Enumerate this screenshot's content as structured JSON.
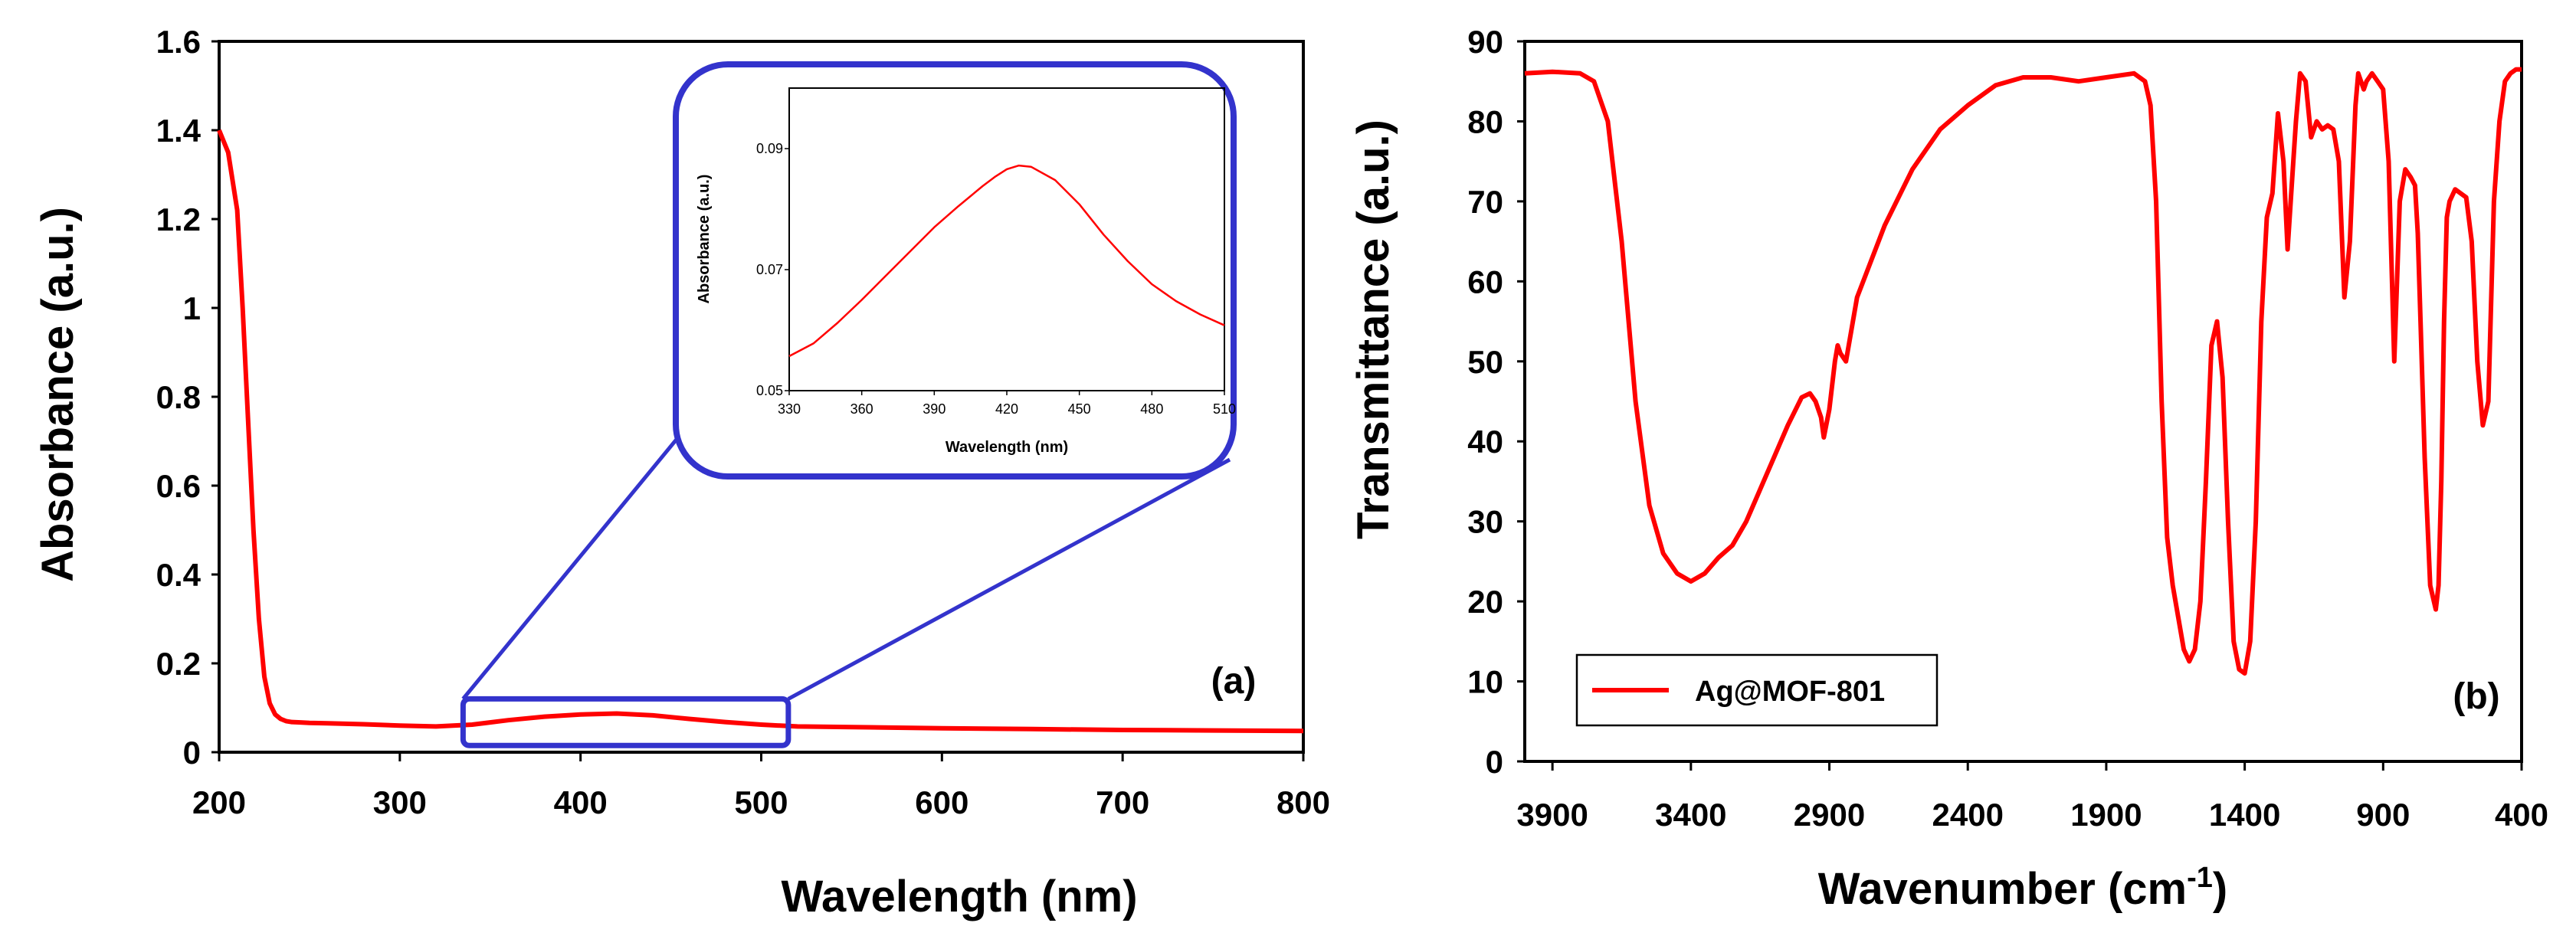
{
  "colors": {
    "series": "#ff0000",
    "callout": "#3333cc",
    "axis": "#000000"
  },
  "chart_data": [
    {
      "id": "a",
      "type": "line",
      "panel_label": "(a)",
      "xlabel": "Wavelength (nm)",
      "ylabel": "Absorbance (a.u.)",
      "xlim": [
        200,
        800
      ],
      "ylim": [
        0,
        1.6
      ],
      "xticks": [
        "200",
        "300",
        "400",
        "500",
        "600",
        "700",
        "800"
      ],
      "yticks": [
        "0",
        "0.2",
        "0.4",
        "0.6",
        "0.8",
        "1",
        "1.2",
        "1.4",
        "1.6"
      ],
      "series": [
        {
          "name": "Ag@MOF-801",
          "x": [
            200,
            205,
            210,
            213,
            216,
            219,
            222,
            225,
            228,
            231,
            234,
            237,
            240,
            245,
            250,
            260,
            280,
            300,
            320,
            340,
            360,
            380,
            400,
            420,
            440,
            460,
            480,
            500,
            520,
            560,
            600,
            650,
            700,
            750,
            800
          ],
          "y": [
            1.4,
            1.35,
            1.22,
            1.0,
            0.75,
            0.5,
            0.3,
            0.17,
            0.11,
            0.085,
            0.075,
            0.07,
            0.068,
            0.067,
            0.066,
            0.065,
            0.063,
            0.06,
            0.058,
            0.062,
            0.072,
            0.08,
            0.085,
            0.087,
            0.083,
            0.075,
            0.068,
            0.062,
            0.058,
            0.056,
            0.054,
            0.052,
            0.05,
            0.049,
            0.048
          ]
        }
      ],
      "zoom_region": {
        "x": [
          335,
          515
        ],
        "y": [
          0.015,
          0.12
        ]
      },
      "inset": {
        "type": "line",
        "xlabel": "Wavelength (nm)",
        "ylabel": "Absorbance (a.u.)",
        "xlim": [
          330,
          510
        ],
        "ylim": [
          0.05,
          0.1
        ],
        "xticks": [
          "330",
          "360",
          "390",
          "420",
          "450",
          "480",
          "510"
        ],
        "yticks": [
          "0.05",
          "0.07",
          "0.09"
        ],
        "x": [
          330,
          340,
          350,
          360,
          370,
          380,
          390,
          400,
          410,
          415,
          420,
          425,
          430,
          440,
          450,
          460,
          470,
          480,
          490,
          500,
          510
        ],
        "y": [
          0.0557,
          0.0578,
          0.0612,
          0.065,
          0.069,
          0.073,
          0.077,
          0.0805,
          0.0838,
          0.0853,
          0.0866,
          0.0872,
          0.087,
          0.0848,
          0.0808,
          0.0758,
          0.0714,
          0.0676,
          0.0648,
          0.0626,
          0.0608
        ]
      }
    },
    {
      "id": "b",
      "type": "line",
      "panel_label": "(b)",
      "xlabel": "Wavenumber (cm",
      "xlabel_sup": "-1",
      "xlabel_end": ")",
      "ylabel": "Transmittance (a.u.)",
      "xlim": [
        4000,
        400
      ],
      "ylim": [
        0,
        90
      ],
      "xticks": [
        "3900",
        "3400",
        "2900",
        "2400",
        "1900",
        "1400",
        "900",
        "400"
      ],
      "yticks": [
        "0",
        "10",
        "20",
        "30",
        "40",
        "50",
        "60",
        "70",
        "80",
        "90"
      ],
      "legend": {
        "label": "Ag@MOF-801",
        "position": "bottom-left"
      },
      "series": [
        {
          "name": "Ag@MOF-801",
          "x": [
            4000,
            3900,
            3800,
            3750,
            3700,
            3650,
            3600,
            3550,
            3500,
            3450,
            3400,
            3350,
            3300,
            3250,
            3200,
            3150,
            3100,
            3050,
            3000,
            2970,
            2950,
            2930,
            2920,
            2900,
            2880,
            2870,
            2860,
            2840,
            2800,
            2700,
            2600,
            2500,
            2400,
            2300,
            2200,
            2100,
            2000,
            1900,
            1800,
            1760,
            1740,
            1720,
            1700,
            1680,
            1660,
            1640,
            1620,
            1600,
            1580,
            1560,
            1540,
            1520,
            1500,
            1480,
            1460,
            1440,
            1420,
            1400,
            1380,
            1360,
            1340,
            1320,
            1300,
            1280,
            1260,
            1245,
            1230,
            1215,
            1200,
            1180,
            1160,
            1140,
            1120,
            1100,
            1080,
            1060,
            1040,
            1020,
            1000,
            990,
            980,
            970,
            960,
            940,
            920,
            900,
            880,
            860,
            840,
            820,
            800,
            785,
            775,
            765,
            750,
            730,
            710,
            700,
            690,
            680,
            670,
            660,
            640,
            620,
            600,
            580,
            560,
            540,
            520,
            500,
            480,
            460,
            440,
            420,
            400
          ],
          "y": [
            86,
            86.2,
            86,
            85,
            80,
            65,
            45,
            32,
            26,
            23.5,
            22.5,
            23.5,
            25.5,
            27,
            30,
            34,
            38,
            42,
            45.5,
            46,
            45,
            43,
            40.5,
            44,
            50,
            52,
            51,
            50,
            58,
            67,
            74,
            79,
            82,
            84.5,
            85.5,
            85.5,
            85,
            85.5,
            86,
            85,
            82,
            70,
            45,
            28,
            22,
            18,
            14,
            12.5,
            14,
            20,
            35,
            52,
            55,
            48,
            30,
            15,
            11.5,
            11,
            15,
            30,
            55,
            68,
            71,
            81,
            75,
            64,
            72,
            80,
            86,
            85,
            78,
            80,
            79,
            79.5,
            79,
            75,
            58,
            65,
            82,
            86,
            85,
            84,
            85,
            86,
            85,
            84,
            75,
            50,
            70,
            74,
            73,
            72,
            66,
            55,
            38,
            22,
            19,
            22,
            35,
            55,
            68,
            70,
            71.5,
            71,
            70.5,
            65,
            50,
            42,
            45,
            70,
            80,
            85,
            86,
            86.5,
            86.5
          ]
        }
      ]
    }
  ]
}
